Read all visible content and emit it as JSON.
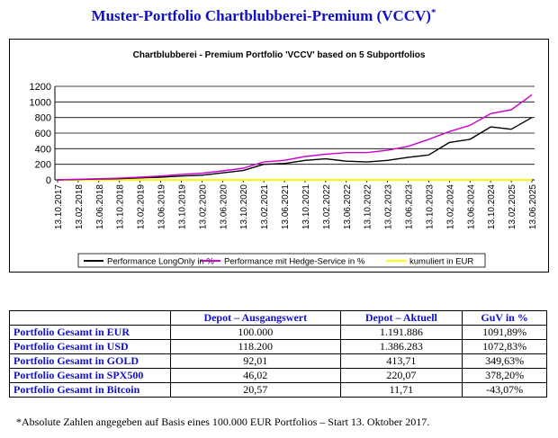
{
  "page": {
    "title": "Muster-Portfolio Chartblubberei-Premium (VCCV)",
    "title_mark": "*",
    "footnote": "*Absolute Zahlen angegeben auf Basis eines 100.000 EUR Portfolios – Start 13. Oktober 2017."
  },
  "chart_data": {
    "type": "line",
    "title": "Chartblubberei - Premium Portfolio 'VCCV' based on 5 Subportfolios",
    "xlabel": "",
    "ylabel": "",
    "ylim": [
      0,
      1200
    ],
    "yticks": [
      0,
      200,
      400,
      600,
      800,
      1000,
      1200
    ],
    "grid": true,
    "legend_position": "bottom",
    "x": [
      "13.10.2017",
      "13.02.2018",
      "13.06.2018",
      "13.10.2018",
      "13.02.2019",
      "13.06.2019",
      "13.10.2019",
      "13.02.2020",
      "13.06.2020",
      "13.10.2020",
      "13.02.2021",
      "13.06.2021",
      "13.10.2021",
      "13.02.2022",
      "13.06.2022",
      "13.10.2022",
      "13.02.2023",
      "13.06.2023",
      "13.10.2023",
      "13.02.2024",
      "13.06.2024",
      "13.10.2024",
      "13.02.2025",
      "13.06.2025"
    ],
    "series": [
      {
        "name": "Performance LongOnly in %",
        "color": "#000000",
        "values": [
          0,
          5,
          10,
          15,
          25,
          35,
          50,
          60,
          90,
          120,
          200,
          210,
          250,
          270,
          240,
          230,
          250,
          290,
          320,
          480,
          520,
          680,
          650,
          800
        ]
      },
      {
        "name": "Performance mit Hedge-Service in %",
        "color": "#cc00cc",
        "values": [
          0,
          8,
          15,
          22,
          35,
          50,
          70,
          85,
          115,
          150,
          230,
          250,
          300,
          330,
          350,
          350,
          380,
          430,
          520,
          620,
          700,
          850,
          900,
          1092
        ]
      },
      {
        "name": "kumuliert in EUR",
        "color": "#ffff00",
        "values": [
          0,
          0,
          0,
          0,
          0,
          0,
          0,
          0,
          0,
          0,
          0,
          0,
          0,
          0,
          0,
          0,
          0,
          0,
          0,
          0,
          0,
          0,
          0,
          0
        ]
      }
    ]
  },
  "table": {
    "headers": [
      "",
      "Depot – Ausgangswert",
      "Depot – Aktuell",
      "GuV in %"
    ],
    "rows": [
      [
        "Portfolio Gesamt in EUR",
        "100.000",
        "1.191.886",
        "1091,89%"
      ],
      [
        "Portfolio Gesamt in USD",
        "118.200",
        "1.386.283",
        "1072,83%"
      ],
      [
        "Portfolio Gesamt in GOLD",
        "92,01",
        "413,71",
        "349,63%"
      ],
      [
        "Portfolio Gesamt in SPX500",
        "46,02",
        "220,07",
        "378,20%"
      ],
      [
        "Portfolio Gesamt in Bitcoin",
        "20,57",
        "11,71",
        "-43,07%"
      ]
    ]
  }
}
